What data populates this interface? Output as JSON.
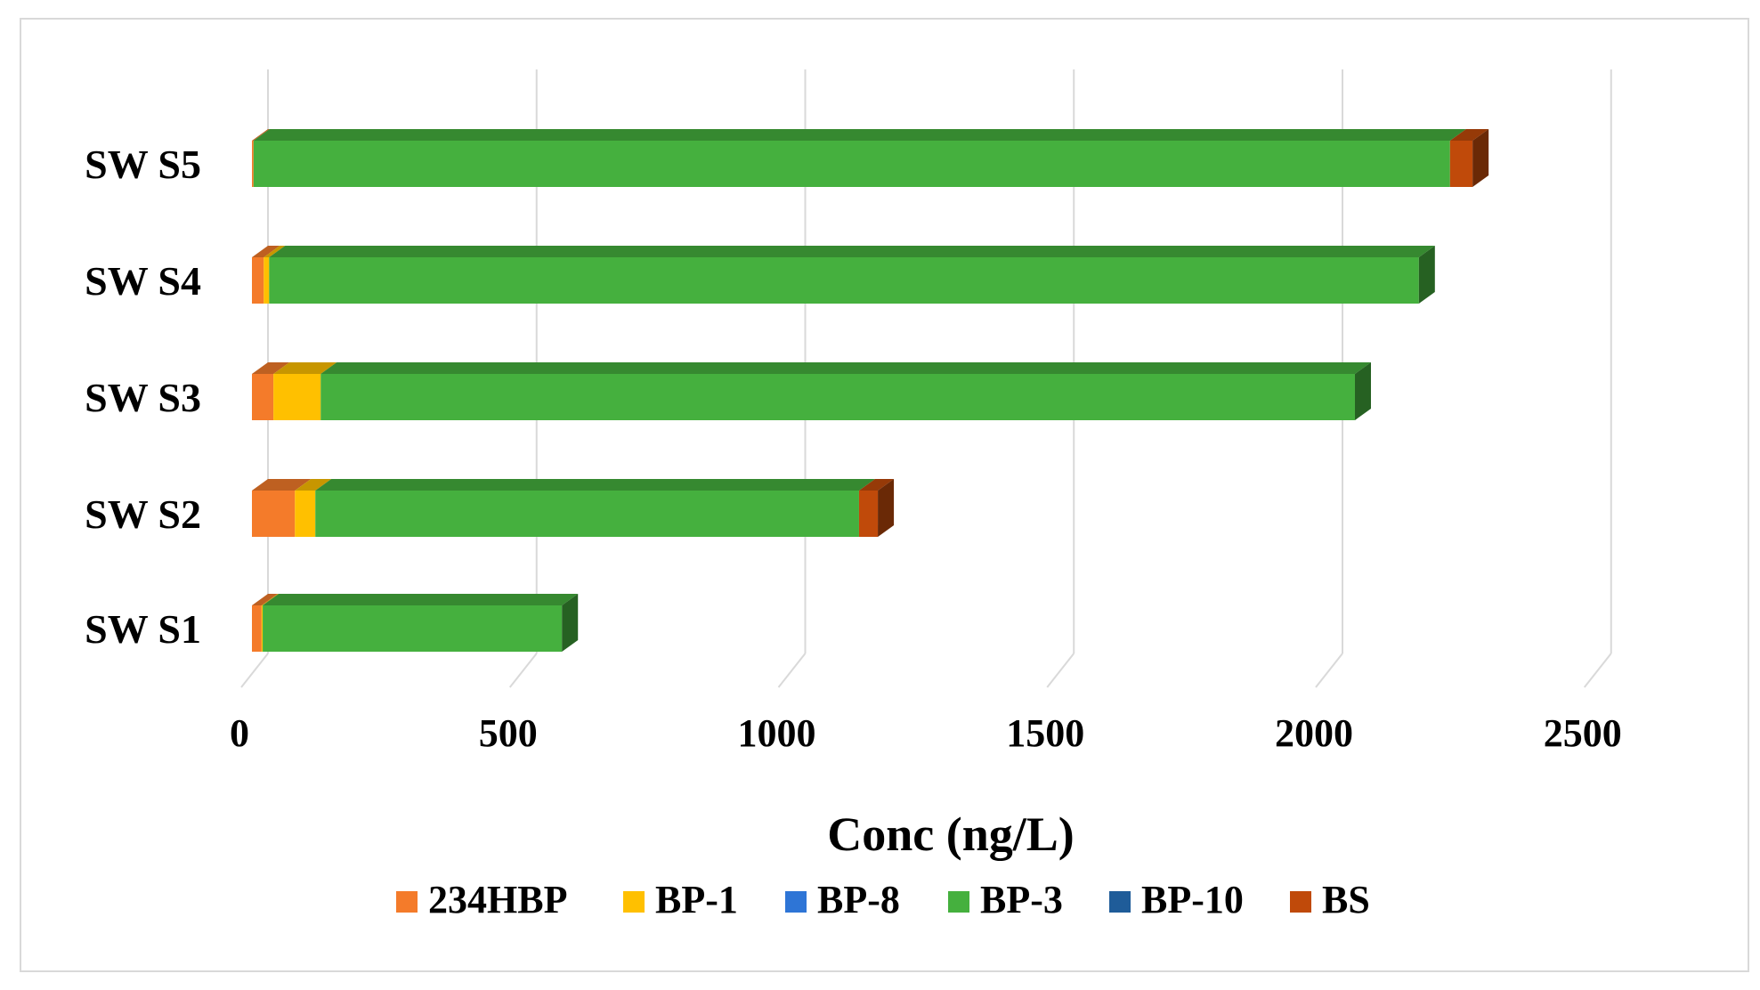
{
  "chart_data": {
    "type": "bar",
    "orientation": "horizontal",
    "stacked": true,
    "three_d": true,
    "categories": [
      "SW S1",
      "SW S2",
      "SW S3",
      "SW S4",
      "SW S5"
    ],
    "series": [
      {
        "name": "234HBP",
        "color": "#F47B2A",
        "values": [
          18,
          80,
          40,
          22,
          3
        ]
      },
      {
        "name": "BP-1",
        "color": "#FFC000",
        "values": [
          2,
          38,
          88,
          10,
          0
        ]
      },
      {
        "name": "BP-8",
        "color": "#2E75D6",
        "values": [
          0,
          0,
          0,
          0,
          0
        ]
      },
      {
        "name": "BP-3",
        "color": "#45B03E",
        "values": [
          557,
          1012,
          1925,
          2140,
          2227
        ]
      },
      {
        "name": "BP-10",
        "color": "#1F5C99",
        "values": [
          0,
          0,
          0,
          0,
          0
        ]
      },
      {
        "name": "BS",
        "color": "#C04A0A",
        "values": [
          0,
          35,
          0,
          0,
          42
        ]
      }
    ],
    "xlabel": "Conc (ng/L)",
    "ylabel": "",
    "xlim": [
      0,
      2500
    ],
    "xticks": [
      0,
      500,
      1000,
      1500,
      2000,
      2500
    ],
    "xtick_labels": [
      "0",
      "500",
      "1000",
      "1500",
      "2000",
      "2500"
    ],
    "grid": true,
    "legend_position": "bottom"
  }
}
